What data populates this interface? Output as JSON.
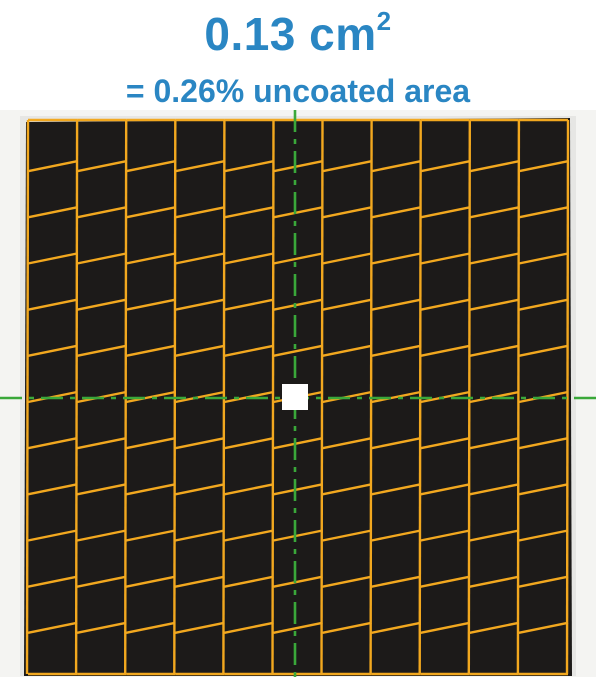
{
  "header": {
    "area_value": "0.13 cm",
    "area_exponent": "2",
    "uncoated_text": "= 0.26% uncoated area"
  },
  "colors": {
    "text_accent": "#2a86c3",
    "grid_lines": "#f2a81f",
    "crosshair": "#3aa83a",
    "coating": "#1c1a19",
    "uncoated_spot": "#ffffff"
  }
}
